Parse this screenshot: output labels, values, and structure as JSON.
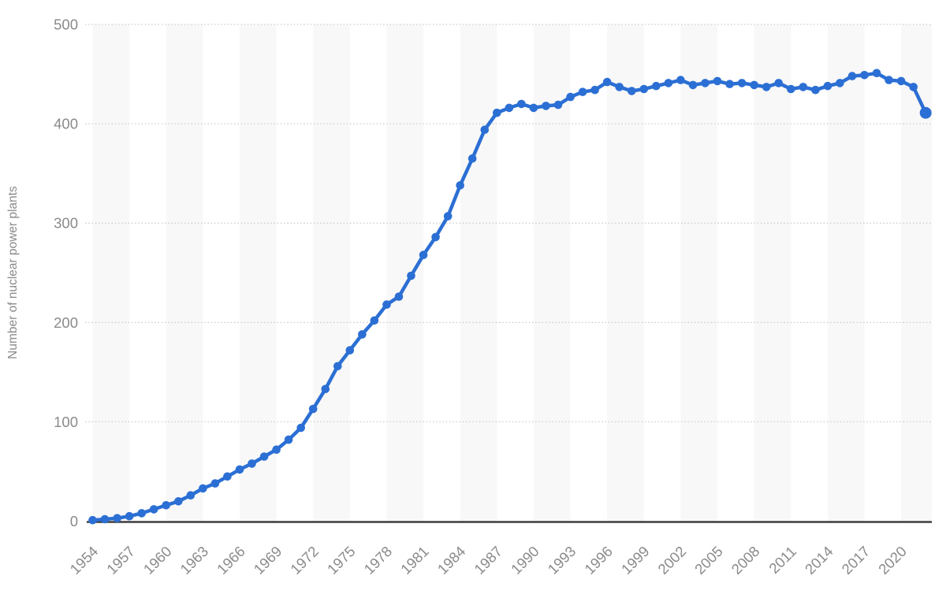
{
  "chart_data": {
    "type": "line",
    "title": "",
    "xlabel": "",
    "ylabel": "Number of nuclear power plants",
    "series_name": "Number of nuclear power plants",
    "x": [
      1954,
      1955,
      1956,
      1957,
      1958,
      1959,
      1960,
      1961,
      1962,
      1963,
      1964,
      1965,
      1966,
      1967,
      1968,
      1969,
      1970,
      1971,
      1972,
      1973,
      1974,
      1975,
      1976,
      1977,
      1978,
      1979,
      1980,
      1981,
      1982,
      1983,
      1984,
      1985,
      1986,
      1987,
      1988,
      1989,
      1990,
      1991,
      1992,
      1993,
      1994,
      1995,
      1996,
      1997,
      1998,
      1999,
      2000,
      2001,
      2002,
      2003,
      2004,
      2005,
      2006,
      2007,
      2008,
      2009,
      2010,
      2011,
      2012,
      2013,
      2014,
      2015,
      2016,
      2017,
      2018,
      2019,
      2020,
      2021,
      2022
    ],
    "values": [
      1,
      2,
      3,
      5,
      8,
      12,
      16,
      20,
      26,
      33,
      38,
      45,
      52,
      58,
      65,
      72,
      82,
      94,
      113,
      133,
      156,
      172,
      188,
      202,
      218,
      226,
      247,
      268,
      286,
      307,
      338,
      365,
      394,
      411,
      416,
      420,
      416,
      418,
      419,
      427,
      432,
      434,
      442,
      437,
      433,
      435,
      438,
      441,
      444,
      439,
      441,
      443,
      440,
      441,
      439,
      437,
      441,
      435,
      437,
      434,
      438,
      441,
      448,
      449,
      451,
      444,
      443,
      437,
      411
    ],
    "ylim": [
      0,
      500
    ],
    "yticks": [
      0,
      100,
      200,
      300,
      400,
      500
    ],
    "xtick_labels": [
      "1954",
      "1957",
      "1960",
      "1963",
      "1966",
      "1969",
      "1972",
      "1975",
      "1978",
      "1981",
      "1984",
      "1987",
      "1990",
      "1993",
      "1996",
      "1999",
      "2002",
      "2005",
      "2008",
      "2011",
      "2014",
      "2017",
      "2020"
    ],
    "xtick_step": 3,
    "grid": "horizontal-dotted",
    "legend_position": "none",
    "plot_bands": "alternating 3-year vertical bands starting 1954",
    "colors": {
      "line": "#2b6fd4",
      "marker": "#2b6fd4",
      "plot_band": "#f8f8f8",
      "gridline": "#cfcfcf",
      "axis_line": "#3d3d3d",
      "tick_label": "#8a8a8a",
      "axis_title": "#8a8a8a",
      "background": "#ffffff"
    }
  }
}
